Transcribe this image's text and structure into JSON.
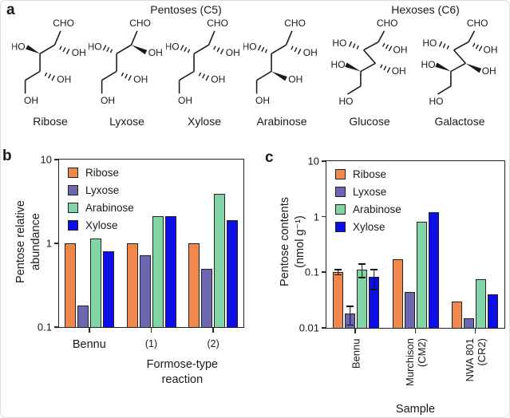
{
  "panels": {
    "a": "a",
    "b": "b",
    "c": "c"
  },
  "panel_a": {
    "headings": [
      {
        "text": "Pentoses (C5)"
      },
      {
        "text": "Hexoses (C6)"
      }
    ],
    "molecules": [
      {
        "name": "Ribose",
        "type": "pentose",
        "top": "CHO",
        "bottom": "OH",
        "subs": [
          {
            "label": "OH",
            "bond": "hash"
          },
          {
            "label": "HO",
            "bond": "wedge"
          },
          {
            "label": "OH",
            "bond": "hash"
          }
        ]
      },
      {
        "name": "Lyxose",
        "type": "pentose",
        "top": "CHO",
        "bottom": "OH",
        "subs": [
          {
            "label": "OH",
            "bond": "wedge"
          },
          {
            "label": "HO",
            "bond": "hash"
          },
          {
            "label": "OH",
            "bond": "hash"
          }
        ]
      },
      {
        "name": "Xylose",
        "type": "pentose",
        "top": "CHO",
        "bottom": "OH",
        "subs": [
          {
            "label": "OH",
            "bond": "hash"
          },
          {
            "label": "HO",
            "bond": "hash"
          },
          {
            "label": "OH",
            "bond": "hash"
          }
        ]
      },
      {
        "name": "Arabinose",
        "type": "pentose",
        "top": "CHO",
        "bottom": "OH",
        "subs": [
          {
            "label": "OH",
            "bond": "hash"
          },
          {
            "label": "HO",
            "bond": "hash"
          },
          {
            "label": "OH",
            "bond": "wedge"
          }
        ]
      },
      {
        "name": "Glucose",
        "type": "hexose",
        "top": "CHO",
        "bottom": "HO",
        "subs": [
          {
            "label": "OH",
            "bond": "hash"
          },
          {
            "label": "HO",
            "bond": "hash"
          },
          {
            "label": "OH",
            "bond": "hash"
          },
          {
            "label": "HO",
            "bond": "wedge"
          }
        ]
      },
      {
        "name": "Galactose",
        "type": "hexose",
        "top": "CHO",
        "bottom": "HO",
        "subs": [
          {
            "label": "OH",
            "bond": "hash"
          },
          {
            "label": "HO",
            "bond": "hash"
          },
          {
            "label": "OH",
            "bond": "wedge"
          },
          {
            "label": "HO",
            "bond": "wedge"
          }
        ]
      }
    ]
  },
  "colors": {
    "ribose": "#F0874D",
    "lyxose": "#6B68B1",
    "arabinose": "#80D4A5",
    "xylose": "#0E0EE6",
    "outline": "#222222",
    "text": "#1a1a1a"
  },
  "chart_data": [
    {
      "id": "b",
      "type": "bar",
      "yscale": "log",
      "ylim": [
        0.1,
        10
      ],
      "yticks": [
        "10",
        "1",
        "0.1"
      ],
      "ylabel_lines": [
        "Pentose relative",
        "abundance"
      ],
      "xlabel_lines": [
        "Formose-type",
        "reaction"
      ],
      "grid": false,
      "legend_position": "top-left",
      "categories": [
        [
          "Bennu"
        ],
        [
          "(1)"
        ],
        [
          "(2)"
        ]
      ],
      "series": [
        {
          "name": "Ribose",
          "color": "#F0874D",
          "values": [
            1.0,
            1.0,
            1.0
          ]
        },
        {
          "name": "Lyxose",
          "color": "#6B68B1",
          "values": [
            0.18,
            0.72,
            0.5
          ]
        },
        {
          "name": "Arabinose",
          "color": "#80D4A5",
          "values": [
            1.15,
            2.1,
            3.9
          ]
        },
        {
          "name": "Xylose",
          "color": "#0E0EE6",
          "values": [
            0.8,
            2.1,
            1.9
          ]
        }
      ]
    },
    {
      "id": "c",
      "type": "bar",
      "yscale": "log",
      "ylim": [
        0.01,
        10
      ],
      "yticks": [
        "10",
        "1",
        "0.1",
        "0.01"
      ],
      "ylabel_lines": [
        "Pentose contents",
        "(nmol g⁻¹)"
      ],
      "xlabel_lines": [
        "Sample"
      ],
      "grid": false,
      "legend_position": "top-left",
      "categories": [
        [
          "Bennu"
        ],
        [
          "Murchison",
          "(CM2)"
        ],
        [
          "NWA 801",
          "(CR2)"
        ]
      ],
      "series": [
        {
          "name": "Ribose",
          "color": "#F0874D",
          "values": [
            0.1,
            0.17,
            0.03
          ],
          "errors": [
            [
              0.088,
              0.115
            ],
            null,
            null
          ]
        },
        {
          "name": "Lyxose",
          "color": "#6B68B1",
          "values": [
            0.018,
            0.044,
            0.015
          ],
          "errors": [
            [
              0.011,
              0.025
            ],
            null,
            null
          ]
        },
        {
          "name": "Arabinose",
          "color": "#80D4A5",
          "values": [
            0.11,
            0.8,
            0.075
          ],
          "errors": [
            [
              0.078,
              0.145
            ],
            null,
            null
          ]
        },
        {
          "name": "Xylose",
          "color": "#0E0EE6",
          "values": [
            0.082,
            1.2,
            0.04
          ],
          "errors": [
            [
              0.048,
              0.115
            ],
            null,
            null
          ]
        }
      ]
    }
  ]
}
